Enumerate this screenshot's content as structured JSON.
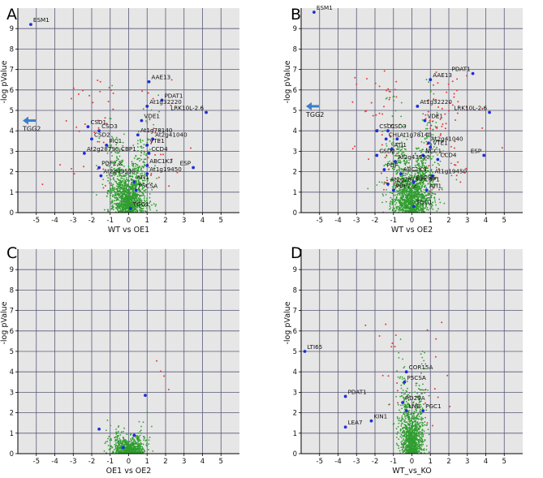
{
  "colors": {
    "background": "#e6e6e6",
    "grid": "#5a5a7a",
    "nonsig": "#2f9e2f",
    "sig": "#e83a3a",
    "marker": "#1d2fd8",
    "arrow": "#3a7fc8",
    "label": "#111111"
  },
  "chart_data": [
    {
      "type": "scatter",
      "panel_label": "A",
      "xlabel": "WT vs OE1",
      "ylabel": "-log pValue",
      "xlim": [
        -6,
        6
      ],
      "ylim": [
        0,
        10
      ],
      "xticks": [
        "-5",
        "-4",
        "-3",
        "-2",
        "-1",
        "0",
        "1",
        "2",
        "3",
        "4",
        "5"
      ],
      "yticks": [
        "0",
        "1",
        "2",
        "3",
        "4",
        "5",
        "6",
        "7",
        "8",
        "9"
      ],
      "cloud": {
        "green_n": 1300,
        "red_n": 60,
        "sd_x": 0.55,
        "max_y": 6.5
      },
      "labels": [
        {
          "text": "ESM1",
          "x": -5.3,
          "y": 9.2
        },
        {
          "text": "AAE13",
          "x": 1.1,
          "y": 6.4
        },
        {
          "text": "PDAT1",
          "x": 1.8,
          "y": 5.5
        },
        {
          "text": "At1g32220",
          "x": 1.0,
          "y": 5.2
        },
        {
          "text": "LRK10L-2.6",
          "x": 4.2,
          "y": 4.9
        },
        {
          "text": "VDE1",
          "x": 0.7,
          "y": 4.5
        },
        {
          "text": "CSD1",
          "x": -2.2,
          "y": 4.2
        },
        {
          "text": "CSD3",
          "x": -1.6,
          "y": 4.0
        },
        {
          "text": "At1g78140",
          "x": 0.5,
          "y": 3.8
        },
        {
          "text": "CSD2",
          "x": -2.0,
          "y": 3.6
        },
        {
          "text": "At2g41040",
          "x": 1.3,
          "y": 3.6
        },
        {
          "text": "PIC1",
          "x": -1.2,
          "y": 3.3
        },
        {
          "text": "VTE1",
          "x": 1.0,
          "y": 3.3
        },
        {
          "text": "CCD4",
          "x": 1.1,
          "y": 2.9
        },
        {
          "text": "At2g28790;CBP1",
          "x": -2.4,
          "y": 2.9
        },
        {
          "text": "ESP",
          "x": 3.5,
          "y": 2.2
        },
        {
          "text": "ABC1K3",
          "x": 1.0,
          "y": 2.3
        },
        {
          "text": "PDF2.2",
          "x": -1.6,
          "y": 2.2
        },
        {
          "text": "At2g43590",
          "x": -1.5,
          "y": 1.8
        },
        {
          "text": "At1g19450",
          "x": 1.0,
          "y": 1.9
        },
        {
          "text": "ATI1",
          "x": 0.3,
          "y": 1.5
        },
        {
          "text": "P5CSA",
          "x": 0.4,
          "y": 1.1
        },
        {
          "text": "TGG1",
          "x": 0.1,
          "y": 0.2
        }
      ],
      "offscreen": {
        "text": "TGG2",
        "y": 4.5
      }
    },
    {
      "type": "scatter",
      "panel_label": "B",
      "xlabel": "WT vs OE2",
      "ylabel": "-log pValue",
      "xlim": [
        -6,
        6
      ],
      "ylim": [
        0,
        10
      ],
      "xticks": [
        "-5",
        "-4",
        "-3",
        "-2",
        "-1",
        "0",
        "1",
        "2",
        "3",
        "4",
        "5"
      ],
      "yticks": [
        "0",
        "1",
        "2",
        "3",
        "4",
        "5",
        "6",
        "7",
        "8",
        "9"
      ],
      "cloud": {
        "green_n": 1400,
        "red_n": 110,
        "sd_x": 0.65,
        "max_y": 7
      },
      "labels": [
        {
          "text": "ESM1",
          "x": -5.3,
          "y": 9.8
        },
        {
          "text": "PDAT1",
          "x": 3.3,
          "y": 6.8
        },
        {
          "text": "AAE13",
          "x": 1.0,
          "y": 6.5
        },
        {
          "text": "At1g32220",
          "x": 0.3,
          "y": 5.2
        },
        {
          "text": "LRK10L-2.6",
          "x": 4.2,
          "y": 4.9
        },
        {
          "text": "VDE1",
          "x": 0.7,
          "y": 4.5
        },
        {
          "text": "CSD1",
          "x": -1.9,
          "y": 4.0
        },
        {
          "text": "CSD3",
          "x": -1.3,
          "y": 4.0
        },
        {
          "text": "CHL",
          "x": -1.4,
          "y": 3.6
        },
        {
          "text": "At1g78140",
          "x": -0.8,
          "y": 3.6
        },
        {
          "text": "At2g41040",
          "x": 0.9,
          "y": 3.4
        },
        {
          "text": "VTE1",
          "x": 1.0,
          "y": 3.2
        },
        {
          "text": "ATI1",
          "x": -1.1,
          "y": 3.1
        },
        {
          "text": "CSD2",
          "x": -1.9,
          "y": 2.8
        },
        {
          "text": "ESP",
          "x": 3.9,
          "y": 2.8
        },
        {
          "text": "NCC1",
          "x": 0.6,
          "y": 2.8
        },
        {
          "text": "CCD4",
          "x": 1.4,
          "y": 2.6
        },
        {
          "text": "At2g43590",
          "x": -0.9,
          "y": 2.5
        },
        {
          "text": "PDF",
          "x": -1.5,
          "y": 2.1
        },
        {
          "text": "ABC1K3",
          "x": -0.6,
          "y": 1.9
        },
        {
          "text": "At1g19450",
          "x": 1.1,
          "y": 1.8
        },
        {
          "text": "At2g28790;CBP1",
          "x": -1.3,
          "y": 1.4
        },
        {
          "text": "P5CSA",
          "x": 0.1,
          "y": 1.5
        },
        {
          "text": "PDF2.2",
          "x": -1.0,
          "y": 1.1
        },
        {
          "text": "ATI1",
          "x": 0.8,
          "y": 1.1
        },
        {
          "text": "TGG1",
          "x": 0.1,
          "y": 0.3
        }
      ],
      "offscreen": {
        "text": "TGG2",
        "y": 5.2
      }
    },
    {
      "type": "scatter",
      "panel_label": "C",
      "xlabel": "OE1 vs OE2",
      "ylabel": "-log pValue",
      "xlim": [
        -6,
        6
      ],
      "ylim": [
        0,
        10
      ],
      "xticks": [
        "-5",
        "-4",
        "-3",
        "-2",
        "-1",
        "0",
        "1",
        "2",
        "3",
        "4",
        "5"
      ],
      "yticks": [
        "0",
        "1",
        "2",
        "3",
        "4",
        "5",
        "6",
        "7",
        "8",
        "9"
      ],
      "cloud": {
        "green_n": 700,
        "red_n": 4,
        "sd_x": 0.45,
        "max_y": 2.2
      },
      "labels": [
        {
          "text": "",
          "x": 0.9,
          "y": 2.85
        },
        {
          "text": "",
          "x": -1.6,
          "y": 1.2
        },
        {
          "text": "",
          "x": -0.3,
          "y": 0.3
        },
        {
          "text": "",
          "x": 0.3,
          "y": 0.9
        }
      ]
    },
    {
      "type": "scatter",
      "panel_label": "D",
      "xlabel": "WT_vs_KO",
      "ylabel": "-log pValue",
      "xlim": [
        -6,
        6
      ],
      "ylim": [
        0,
        10
      ],
      "xticks": [
        "-5",
        "-4",
        "-3",
        "-2",
        "-1",
        "0",
        "1",
        "2",
        "3",
        "4",
        "5"
      ],
      "yticks": [
        "0",
        "1",
        "2",
        "3",
        "4",
        "5",
        "6",
        "7",
        "8",
        "9"
      ],
      "cloud": {
        "green_n": 1000,
        "red_n": 25,
        "sd_x": 0.35,
        "max_y": 6.5,
        "narrow": true
      },
      "labels": [
        {
          "text": "LTI65",
          "x": -5.8,
          "y": 5.0
        },
        {
          "text": "COR15A",
          "x": -0.3,
          "y": 4.0
        },
        {
          "text": "P5CSA",
          "x": -0.4,
          "y": 3.5
        },
        {
          "text": "PDAT1",
          "x": -3.6,
          "y": 2.8
        },
        {
          "text": "RD29A",
          "x": -0.5,
          "y": 2.5
        },
        {
          "text": "LNB",
          "x": -0.3,
          "y": 2.1
        },
        {
          "text": "PGC1",
          "x": 0.6,
          "y": 2.1
        },
        {
          "text": "KIN1",
          "x": -2.2,
          "y": 1.6
        },
        {
          "text": "LEA7",
          "x": -3.6,
          "y": 1.3
        }
      ]
    }
  ]
}
